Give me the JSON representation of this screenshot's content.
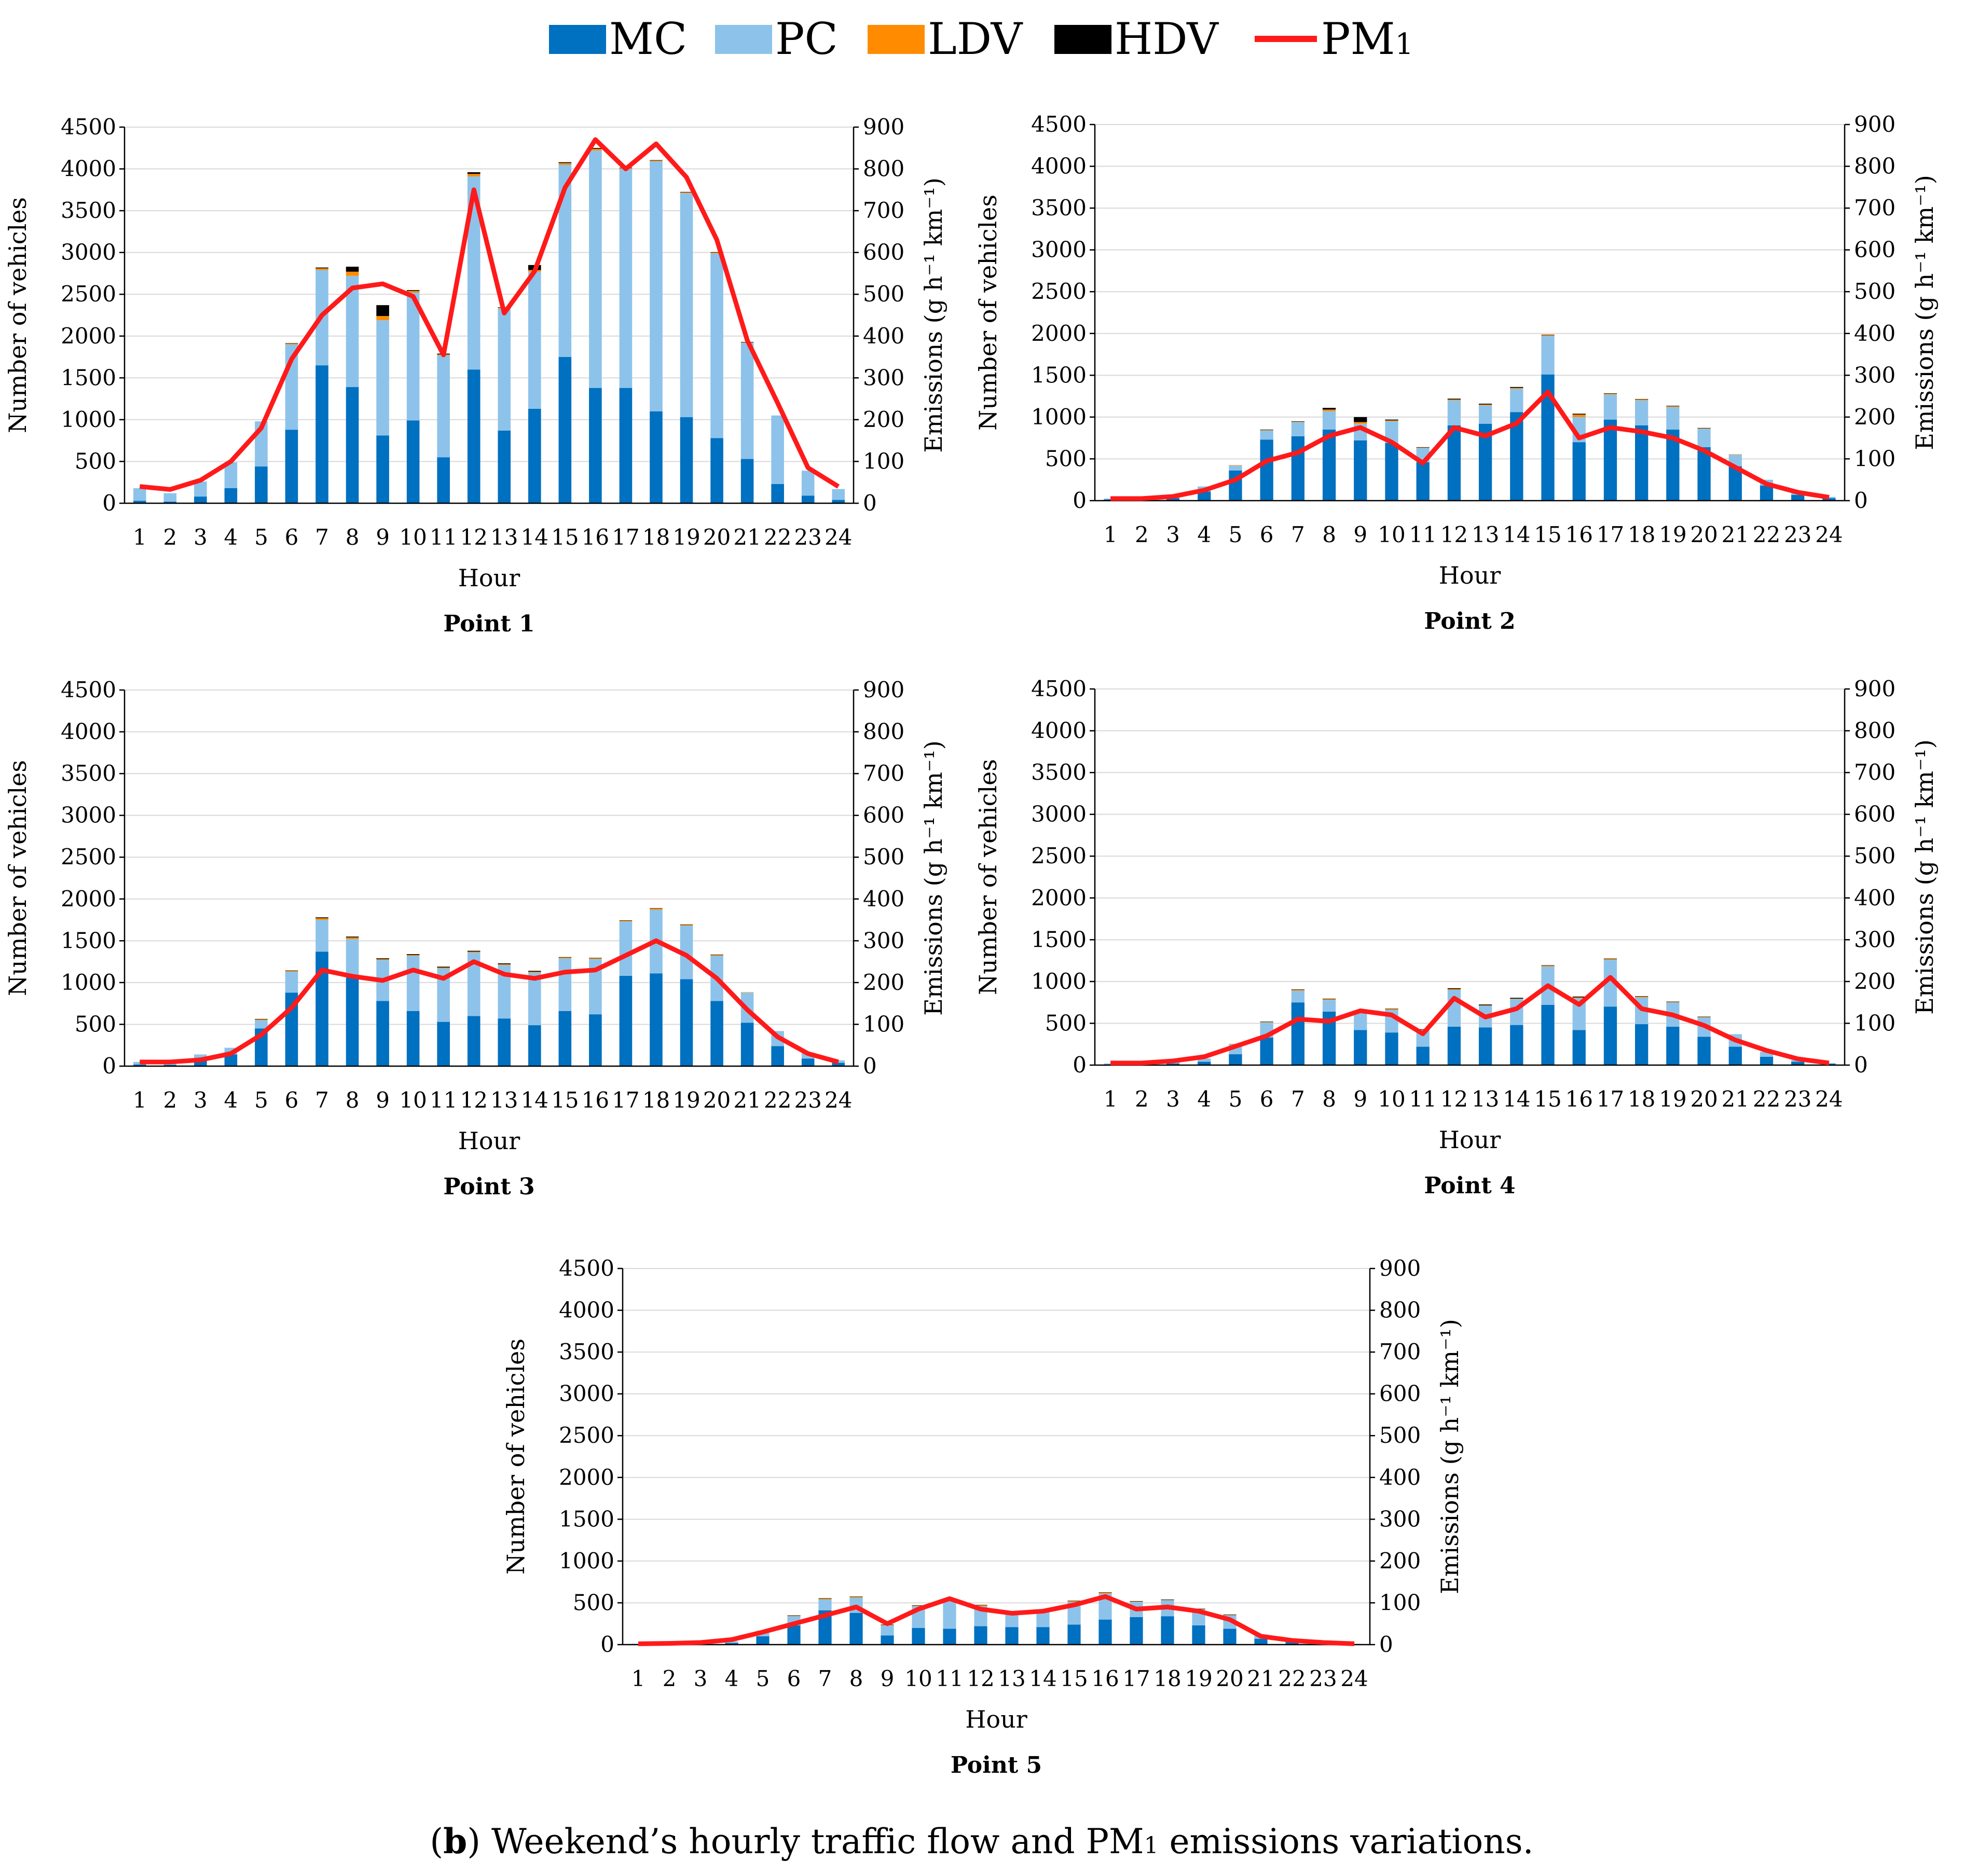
{
  "legend": {
    "items": [
      {
        "key": "mc",
        "label": "MC",
        "color": "#0070c0"
      },
      {
        "key": "pc",
        "label": "PC",
        "color": "#8dc3ea"
      },
      {
        "key": "ldv",
        "label": "LDV",
        "color": "#ff8c00"
      },
      {
        "key": "hdv",
        "label": "HDV",
        "color": "#000000"
      },
      {
        "key": "pm",
        "label": "PM",
        "sub": "1",
        "color": "#ff1a1a"
      }
    ]
  },
  "caption": {
    "open": "(",
    "letter": "b",
    "close": ")",
    "text_a": " Weekend’s hourly traffic flow and PM",
    "sub": "1",
    "text_b": " emissions variations."
  },
  "chart_data": [
    {
      "type": "bar",
      "title": "Point 1",
      "xlabel": "Hour",
      "ylabel": "Number of vehicles",
      "y2label": "Emissions (g h⁻¹ km⁻¹)",
      "ylim": [
        0,
        4500
      ],
      "y2lim": [
        0,
        900
      ],
      "categories": [
        "1",
        "2",
        "3",
        "4",
        "5",
        "6",
        "7",
        "8",
        "9",
        "10",
        "11",
        "12",
        "13",
        "14",
        "15",
        "16",
        "17",
        "18",
        "19",
        "20",
        "21",
        "22",
        "23",
        "24"
      ],
      "series": [
        {
          "name": "MC",
          "values": [
            30,
            20,
            80,
            180,
            440,
            880,
            1650,
            1390,
            810,
            990,
            550,
            1600,
            870,
            1130,
            1750,
            1380,
            1380,
            1100,
            1030,
            780,
            530,
            230,
            90,
            40
          ]
        },
        {
          "name": "PC",
          "values": [
            150,
            100,
            180,
            310,
            540,
            1020,
            1140,
            1330,
            1380,
            1530,
            1220,
            2310,
            1460,
            1640,
            2300,
            2840,
            2620,
            2990,
            2680,
            2210,
            1390,
            820,
            300,
            130
          ]
        },
        {
          "name": "LDV",
          "values": [
            0,
            0,
            0,
            0,
            0,
            10,
            20,
            50,
            50,
            20,
            10,
            30,
            10,
            20,
            20,
            20,
            10,
            10,
            10,
            10,
            5,
            0,
            0,
            0
          ]
        },
        {
          "name": "HDV",
          "values": [
            0,
            0,
            0,
            0,
            0,
            5,
            10,
            60,
            130,
            10,
            10,
            20,
            5,
            60,
            10,
            10,
            5,
            5,
            5,
            5,
            5,
            0,
            0,
            0
          ]
        },
        {
          "name": "PM1",
          "axis": "right",
          "values": [
            40,
            33,
            55,
            100,
            180,
            345,
            450,
            515,
            525,
            495,
            355,
            750,
            455,
            555,
            755,
            870,
            800,
            860,
            780,
            630,
            390,
            240,
            85,
            40
          ]
        }
      ]
    },
    {
      "type": "bar",
      "title": "Point 2",
      "xlabel": "Hour",
      "ylabel": "Number of vehicles",
      "y2label": "Emissions (g h⁻¹ km⁻¹)",
      "ylim": [
        0,
        4500
      ],
      "y2lim": [
        0,
        900
      ],
      "categories": [
        "1",
        "2",
        "3",
        "4",
        "5",
        "6",
        "7",
        "8",
        "9",
        "10",
        "11",
        "12",
        "13",
        "14",
        "15",
        "16",
        "17",
        "18",
        "19",
        "20",
        "21",
        "22",
        "23",
        "24"
      ],
      "series": [
        {
          "name": "MC",
          "values": [
            15,
            10,
            30,
            110,
            360,
            730,
            770,
            850,
            720,
            690,
            460,
            900,
            920,
            1060,
            1510,
            700,
            970,
            900,
            850,
            640,
            410,
            180,
            70,
            30
          ]
        },
        {
          "name": "PC",
          "values": [
            10,
            10,
            20,
            60,
            60,
            110,
            170,
            220,
            200,
            260,
            170,
            300,
            220,
            280,
            460,
            300,
            300,
            300,
            270,
            220,
            140,
            70,
            30,
            15
          ]
        },
        {
          "name": "LDV",
          "values": [
            0,
            0,
            0,
            0,
            5,
            5,
            5,
            20,
            20,
            10,
            5,
            10,
            10,
            10,
            10,
            30,
            10,
            10,
            10,
            5,
            5,
            0,
            0,
            0
          ]
        },
        {
          "name": "HDV",
          "values": [
            0,
            0,
            0,
            0,
            0,
            5,
            5,
            20,
            60,
            10,
            5,
            10,
            10,
            10,
            5,
            10,
            5,
            5,
            5,
            5,
            0,
            0,
            0,
            0
          ]
        },
        {
          "name": "PM1",
          "axis": "right",
          "values": [
            5,
            5,
            10,
            25,
            50,
            95,
            115,
            155,
            175,
            140,
            90,
            175,
            155,
            185,
            260,
            150,
            175,
            165,
            150,
            120,
            80,
            40,
            20,
            8
          ]
        }
      ]
    },
    {
      "type": "bar",
      "title": "Point 3",
      "xlabel": "Hour",
      "ylabel": "Number of vehicles",
      "y2label": "Emissions (g h⁻¹ km⁻¹)",
      "ylim": [
        0,
        4500
      ],
      "y2lim": [
        0,
        900
      ],
      "categories": [
        "1",
        "2",
        "3",
        "4",
        "5",
        "6",
        "7",
        "8",
        "9",
        "10",
        "11",
        "12",
        "13",
        "14",
        "15",
        "16",
        "17",
        "18",
        "19",
        "20",
        "21",
        "22",
        "23",
        "24"
      ],
      "series": [
        {
          "name": "MC",
          "values": [
            20,
            15,
            80,
            140,
            450,
            880,
            1370,
            1060,
            780,
            660,
            530,
            600,
            570,
            490,
            660,
            620,
            1080,
            1110,
            1040,
            780,
            520,
            240,
            90,
            40
          ]
        },
        {
          "name": "PC",
          "values": [
            30,
            20,
            60,
            80,
            100,
            250,
            380,
            460,
            490,
            660,
            640,
            760,
            640,
            630,
            630,
            660,
            650,
            760,
            640,
            540,
            360,
            180,
            70,
            30
          ]
        },
        {
          "name": "LDV",
          "values": [
            0,
            0,
            0,
            0,
            10,
            10,
            20,
            20,
            10,
            10,
            10,
            10,
            10,
            10,
            10,
            10,
            10,
            15,
            10,
            10,
            5,
            0,
            0,
            0
          ]
        },
        {
          "name": "HDV",
          "values": [
            0,
            0,
            0,
            0,
            5,
            5,
            10,
            10,
            10,
            10,
            10,
            10,
            10,
            10,
            5,
            5,
            5,
            5,
            5,
            5,
            0,
            0,
            0,
            0
          ]
        },
        {
          "name": "PM1",
          "axis": "right",
          "values": [
            10,
            10,
            15,
            30,
            75,
            140,
            230,
            215,
            205,
            230,
            210,
            250,
            220,
            210,
            225,
            230,
            265,
            300,
            265,
            210,
            135,
            70,
            30,
            10
          ]
        }
      ]
    },
    {
      "type": "bar",
      "title": "Point 4",
      "xlabel": "Hour",
      "ylabel": "Number of vehicles",
      "y2label": "Emissions (g h⁻¹ km⁻¹)",
      "ylim": [
        0,
        4500
      ],
      "y2lim": [
        0,
        900
      ],
      "categories": [
        "1",
        "2",
        "3",
        "4",
        "5",
        "6",
        "7",
        "8",
        "9",
        "10",
        "11",
        "12",
        "13",
        "14",
        "15",
        "16",
        "17",
        "18",
        "19",
        "20",
        "21",
        "22",
        "23",
        "24"
      ],
      "series": [
        {
          "name": "MC",
          "values": [
            10,
            10,
            20,
            40,
            130,
            330,
            750,
            640,
            420,
            390,
            220,
            460,
            450,
            480,
            720,
            420,
            700,
            490,
            460,
            340,
            220,
            100,
            40,
            15
          ]
        },
        {
          "name": "PC",
          "values": [
            10,
            10,
            20,
            40,
            120,
            180,
            140,
            140,
            200,
            270,
            200,
            440,
            260,
            310,
            460,
            380,
            560,
            320,
            290,
            230,
            150,
            60,
            20,
            10
          ]
        },
        {
          "name": "LDV",
          "values": [
            0,
            0,
            0,
            0,
            5,
            5,
            10,
            10,
            5,
            10,
            5,
            10,
            5,
            5,
            10,
            10,
            10,
            10,
            5,
            5,
            0,
            0,
            0,
            0
          ]
        },
        {
          "name": "HDV",
          "values": [
            0,
            0,
            0,
            0,
            0,
            5,
            5,
            5,
            5,
            5,
            5,
            10,
            10,
            10,
            5,
            10,
            5,
            5,
            5,
            5,
            0,
            0,
            0,
            0
          ]
        },
        {
          "name": "PM1",
          "axis": "right",
          "values": [
            5,
            5,
            10,
            20,
            45,
            70,
            110,
            105,
            130,
            120,
            75,
            160,
            115,
            135,
            190,
            145,
            210,
            135,
            120,
            95,
            60,
            35,
            15,
            5
          ]
        }
      ]
    },
    {
      "type": "bar",
      "title": "Point 5",
      "xlabel": "Hour",
      "ylabel": "Number of vehicles",
      "y2label": "Emissions (g h⁻¹ km⁻¹)",
      "ylim": [
        0,
        4500
      ],
      "y2lim": [
        0,
        900
      ],
      "categories": [
        "1",
        "2",
        "3",
        "4",
        "5",
        "6",
        "7",
        "8",
        "9",
        "10",
        "11",
        "12",
        "13",
        "14",
        "15",
        "16",
        "17",
        "18",
        "19",
        "20",
        "21",
        "22",
        "23",
        "24"
      ],
      "series": [
        {
          "name": "MC",
          "values": [
            5,
            5,
            10,
            20,
            100,
            230,
            410,
            380,
            110,
            200,
            190,
            220,
            210,
            210,
            240,
            300,
            330,
            340,
            230,
            190,
            70,
            30,
            10,
            5
          ]
        },
        {
          "name": "PC",
          "values": [
            5,
            5,
            10,
            20,
            60,
            110,
            130,
            180,
            120,
            260,
            330,
            240,
            180,
            200,
            270,
            310,
            180,
            190,
            190,
            160,
            50,
            20,
            10,
            5
          ]
        },
        {
          "name": "LDV",
          "values": [
            0,
            0,
            0,
            0,
            5,
            5,
            10,
            10,
            5,
            5,
            10,
            10,
            5,
            5,
            10,
            10,
            5,
            5,
            5,
            5,
            0,
            0,
            0,
            0
          ]
        },
        {
          "name": "HDV",
          "values": [
            0,
            0,
            0,
            0,
            0,
            5,
            5,
            5,
            5,
            5,
            5,
            5,
            5,
            5,
            5,
            5,
            5,
            5,
            5,
            5,
            0,
            0,
            0,
            0
          ]
        },
        {
          "name": "PM1",
          "axis": "right",
          "values": [
            2,
            3,
            5,
            12,
            30,
            50,
            70,
            90,
            50,
            85,
            110,
            85,
            75,
            80,
            95,
            115,
            85,
            90,
            80,
            60,
            20,
            10,
            5,
            2
          ]
        }
      ]
    }
  ]
}
